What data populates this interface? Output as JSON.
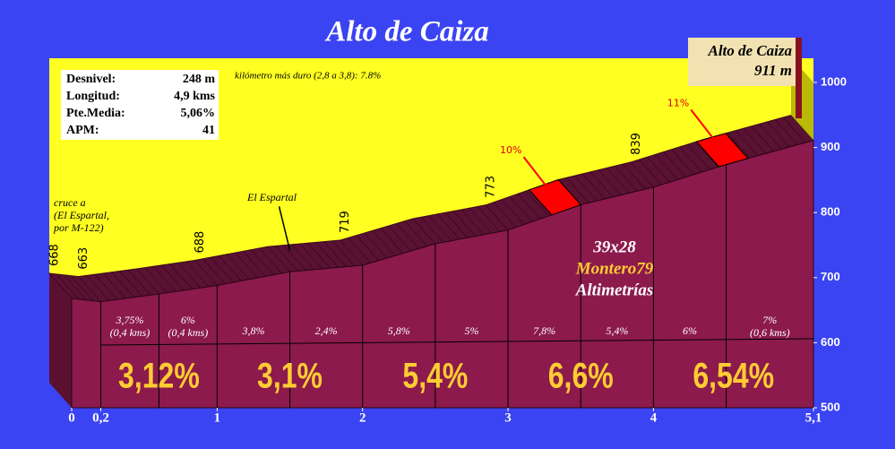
{
  "chart_data": {
    "type": "profile",
    "title": "Alto de Caiza",
    "info": [
      [
        "Desnivel:",
        "248 m"
      ],
      [
        "Longitud:",
        "4,9 kms"
      ],
      [
        "Pte.Media:",
        "5,06%"
      ],
      [
        "APM:",
        "41"
      ]
    ],
    "hardest_km": "kilómetro más duro (2,8 a 3,8):  7.8%",
    "x": [
      0,
      0.2,
      0.6,
      1,
      1.5,
      2,
      2.5,
      3,
      3.5,
      4,
      4.5,
      5.1
    ],
    "series": [
      {
        "color": "#8c1a4c",
        "values": [
          668,
          663,
          675,
          688,
          709,
          719,
          752,
          773,
          812,
          839,
          874,
          911
        ],
        "value_labels": [
          "668",
          "663",
          null,
          "688",
          null,
          "719",
          null,
          "773",
          null,
          "839",
          null,
          null
        ]
      }
    ],
    "segment_labels": [
      [
        "3,75%",
        "(0,4 kms)"
      ],
      [
        "6%",
        "(0,4 kms)"
      ],
      [
        "3,8%"
      ],
      [
        "2,4%"
      ],
      [
        "5,8%"
      ],
      [
        "5%"
      ],
      [
        "7,8%"
      ],
      [
        "5,4%"
      ],
      [
        "6%"
      ],
      [
        "7%",
        "(0,6 kms)"
      ]
    ],
    "km_labels": [
      "3,12%",
      "3,1%",
      "5,4%",
      "6,6%",
      "6,54%"
    ],
    "xlim": [
      0,
      5.1
    ],
    "xticks": [
      0,
      {
        "value": 0.2,
        "label": "0,2"
      },
      1,
      2,
      3,
      4,
      {
        "value": 5.1,
        "label": "5,1"
      }
    ],
    "ylim": [
      500,
      1000
    ],
    "yticks": [
      500,
      600,
      700,
      800,
      900,
      1000
    ],
    "steep": [
      {
        "label": "10%",
        "from": 3.3,
        "to": 3.5
      },
      {
        "label": "11%",
        "from": 4.45,
        "to": 4.65
      }
    ],
    "places": [
      {
        "label": "El Espartal",
        "x": 1.5
      },
      {
        "label": "cruce a\n(El Espartal,\npor M-122)",
        "x": 0
      }
    ],
    "summit": [
      "Alto de Caiza",
      "911 m"
    ],
    "credits": [
      "39x28",
      "Montero79",
      "Altimetrías"
    ]
  }
}
